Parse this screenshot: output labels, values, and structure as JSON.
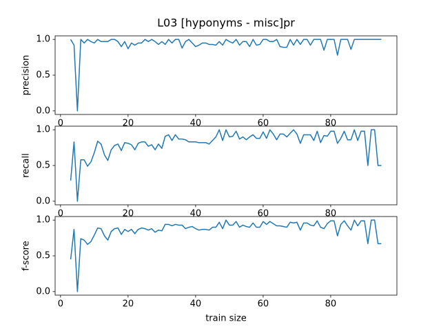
{
  "chart_data": [
    {
      "type": "line",
      "title": "L03 [hyponyms - misc]pr",
      "y_label": "precision",
      "color": "#1f77b4",
      "x": [
        3,
        4,
        5,
        6,
        7,
        8,
        9,
        10,
        11,
        12,
        13,
        14,
        15,
        16,
        17,
        18,
        19,
        20,
        21,
        22,
        23,
        24,
        25,
        26,
        27,
        28,
        29,
        30,
        31,
        32,
        33,
        34,
        35,
        36,
        37,
        38,
        39,
        40,
        41,
        42,
        43,
        44,
        45,
        46,
        47,
        48,
        49,
        50,
        51,
        52,
        53,
        54,
        55,
        56,
        57,
        58,
        59,
        60,
        61,
        62,
        63,
        64,
        65,
        66,
        67,
        68,
        69,
        70,
        71,
        72,
        73,
        74,
        75,
        76,
        77,
        78,
        79,
        80,
        81,
        82,
        83,
        84,
        85,
        86,
        87,
        88,
        89,
        90,
        91,
        92,
        93,
        94,
        95
      ],
      "values": [
        1.0,
        0.92,
        0.0,
        1.0,
        0.95,
        1.0,
        0.97,
        0.95,
        1.0,
        0.97,
        0.97,
        0.97,
        1.0,
        1.0,
        0.97,
        0.9,
        0.97,
        0.87,
        0.95,
        0.92,
        0.95,
        0.95,
        1.0,
        0.97,
        1.0,
        0.97,
        0.93,
        0.97,
        0.93,
        1.0,
        0.95,
        1.0,
        1.0,
        0.88,
        0.97,
        1.0,
        0.95,
        0.9,
        0.92,
        0.95,
        0.95,
        0.93,
        0.93,
        0.92,
        0.97,
        0.92,
        1.0,
        0.97,
        0.95,
        1.0,
        0.92,
        0.97,
        0.97,
        0.9,
        1.0,
        0.92,
        0.93,
        1.0,
        1.0,
        0.97,
        0.97,
        1.0,
        0.9,
        0.89,
        0.89,
        1.0,
        0.92,
        1.0,
        0.93,
        1.0,
        1.0,
        0.92,
        1.0,
        1.0,
        1.0,
        0.85,
        1.0,
        1.0,
        1.0,
        0.78,
        1.0,
        1.0,
        1.0,
        0.86,
        1.0,
        1.0,
        1.0,
        1.0,
        1.0,
        1.0,
        1.0,
        1.0,
        1.0
      ],
      "xlim": [
        -1.6,
        99.6
      ],
      "xticks": [
        0,
        20,
        40,
        60,
        80
      ],
      "ylim": [
        -0.05,
        1.05
      ],
      "yticks": [
        {
          "value": 0,
          "label": "0.0"
        },
        {
          "value": 0.5,
          "label": "0.5"
        },
        {
          "value": 1,
          "label": "1.0"
        }
      ]
    },
    {
      "type": "line",
      "y_label": "recall",
      "color": "#1f77b4",
      "x": [
        3,
        4,
        5,
        6,
        7,
        8,
        9,
        10,
        11,
        12,
        13,
        14,
        15,
        16,
        17,
        18,
        19,
        20,
        21,
        22,
        23,
        24,
        25,
        26,
        27,
        28,
        29,
        30,
        31,
        32,
        33,
        34,
        35,
        36,
        37,
        38,
        39,
        40,
        41,
        42,
        43,
        44,
        45,
        46,
        47,
        48,
        49,
        50,
        51,
        52,
        53,
        54,
        55,
        56,
        57,
        58,
        59,
        60,
        61,
        62,
        63,
        64,
        65,
        66,
        67,
        68,
        69,
        70,
        71,
        72,
        73,
        74,
        75,
        76,
        77,
        78,
        79,
        80,
        81,
        82,
        83,
        84,
        85,
        86,
        87,
        88,
        89,
        90,
        91,
        92,
        93,
        94,
        95
      ],
      "values": [
        0.29,
        0.83,
        0.0,
        0.58,
        0.58,
        0.49,
        0.55,
        0.68,
        0.84,
        0.8,
        0.65,
        0.57,
        0.72,
        0.78,
        0.8,
        0.71,
        0.82,
        0.81,
        0.79,
        0.72,
        0.81,
        0.83,
        0.83,
        0.77,
        0.79,
        0.72,
        0.8,
        0.74,
        0.91,
        0.93,
        0.85,
        0.93,
        0.87,
        0.87,
        0.86,
        0.83,
        0.83,
        0.83,
        0.82,
        0.82,
        0.82,
        0.8,
        0.85,
        0.9,
        1.0,
        0.85,
        1.0,
        0.9,
        0.91,
        0.98,
        0.87,
        0.9,
        0.86,
        0.9,
        0.93,
        0.88,
        0.88,
        0.97,
        0.88,
        1.0,
        0.94,
        0.86,
        0.94,
        0.94,
        0.9,
        0.95,
        1.0,
        0.94,
        0.81,
        0.93,
        0.93,
        0.93,
        0.85,
        0.98,
        0.82,
        0.92,
        0.91,
        0.98,
        0.98,
        0.81,
        0.88,
        0.98,
        0.86,
        0.86,
        1.0,
        0.85,
        0.98,
        0.98,
        0.5,
        1.0,
        1.0,
        0.5,
        0.5
      ],
      "xlim": [
        -1.6,
        99.6
      ],
      "xticks": [
        0,
        20,
        40,
        60,
        80
      ],
      "ylim": [
        -0.05,
        1.05
      ],
      "yticks": [
        {
          "value": 0,
          "label": "0.0"
        },
        {
          "value": 0.5,
          "label": "0.5"
        },
        {
          "value": 1,
          "label": "1.0"
        }
      ]
    },
    {
      "type": "line",
      "y_label": "f-score",
      "x_label": "train size",
      "color": "#1f77b4",
      "x": [
        3,
        4,
        5,
        6,
        7,
        8,
        9,
        10,
        11,
        12,
        13,
        14,
        15,
        16,
        17,
        18,
        19,
        20,
        21,
        22,
        23,
        24,
        25,
        26,
        27,
        28,
        29,
        30,
        31,
        32,
        33,
        34,
        35,
        36,
        37,
        38,
        39,
        40,
        41,
        42,
        43,
        44,
        45,
        46,
        47,
        48,
        49,
        50,
        51,
        52,
        53,
        54,
        55,
        56,
        57,
        58,
        59,
        60,
        61,
        62,
        63,
        64,
        65,
        66,
        67,
        68,
        69,
        70,
        71,
        72,
        73,
        74,
        75,
        76,
        77,
        78,
        79,
        80,
        81,
        82,
        83,
        84,
        85,
        86,
        87,
        88,
        89,
        90,
        91,
        92,
        93,
        94,
        95
      ],
      "values": [
        0.45,
        0.87,
        0.0,
        0.74,
        0.72,
        0.66,
        0.7,
        0.79,
        0.89,
        0.88,
        0.78,
        0.72,
        0.84,
        0.88,
        0.89,
        0.8,
        0.87,
        0.84,
        0.87,
        0.81,
        0.87,
        0.89,
        0.88,
        0.86,
        0.88,
        0.83,
        0.86,
        0.85,
        0.94,
        0.94,
        0.92,
        0.94,
        0.93,
        0.93,
        0.88,
        0.9,
        0.91,
        0.88,
        0.86,
        0.87,
        0.87,
        0.86,
        0.9,
        0.9,
        0.97,
        0.88,
        1.0,
        0.93,
        0.93,
        0.98,
        0.9,
        0.93,
        0.91,
        0.9,
        0.96,
        0.9,
        0.9,
        0.98,
        0.94,
        0.98,
        0.95,
        0.92,
        0.92,
        0.91,
        0.9,
        0.97,
        0.96,
        0.97,
        0.86,
        0.96,
        0.96,
        0.93,
        0.92,
        0.99,
        0.9,
        0.88,
        0.95,
        0.99,
        0.99,
        0.78,
        0.94,
        0.99,
        0.92,
        0.86,
        1.0,
        0.92,
        0.99,
        0.99,
        0.67,
        1.0,
        1.0,
        0.67,
        0.67
      ],
      "xlim": [
        -1.6,
        99.6
      ],
      "xticks": [
        0,
        20,
        40,
        60,
        80
      ],
      "ylim": [
        -0.05,
        1.05
      ],
      "yticks": [
        {
          "value": 0,
          "label": "0.0"
        },
        {
          "value": 0.5,
          "label": "0.5"
        },
        {
          "value": 1,
          "label": "1.0"
        }
      ]
    }
  ]
}
